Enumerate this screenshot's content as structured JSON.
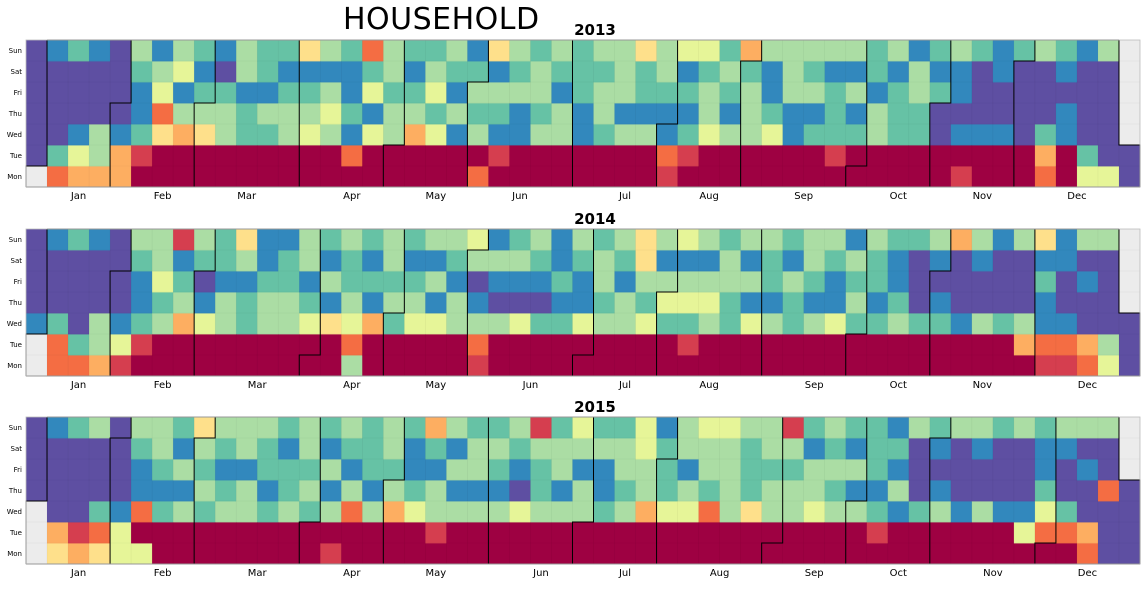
{
  "title": "HOUSEHOLD",
  "chart_data": [
    {
      "type": "heatmap",
      "title": "2013",
      "weekday_labels": [
        "Sun",
        "Sat",
        "Fri",
        "Thu",
        "Wed",
        "Tue",
        "Mon"
      ],
      "month_labels": [
        "Jan",
        "Feb",
        "Mar",
        "Apr",
        "May",
        "Jun",
        "Jul",
        "Aug",
        "Sep",
        "Oct",
        "Nov",
        "Dec"
      ],
      "grid": true,
      "colormap": [
        "#5e4fa2",
        "#3288bd",
        "#66c2a5",
        "#abdda4",
        "#e6f598",
        "#fee08b",
        "#fdae61",
        "#f46d43",
        "#d53e4f",
        "#9e0142"
      ],
      "start_date": "2013-01-01",
      "value_range": [
        0,
        9
      ],
      "values": [
        [
          0,
          0,
          0,
          0,
          0,
          0,
          0
        ],
        [
          1,
          0,
          0,
          0,
          0,
          2,
          7
        ],
        [
          2,
          0,
          0,
          0,
          1,
          4,
          6
        ],
        [
          1,
          0,
          0,
          0,
          3,
          3,
          6
        ],
        [
          0,
          0,
          0,
          0,
          1,
          6,
          6
        ],
        [
          3,
          2,
          1,
          1,
          2,
          8,
          9
        ],
        [
          1,
          3,
          4,
          7,
          5,
          9,
          9
        ],
        [
          3,
          4,
          1,
          3,
          6,
          9,
          9
        ],
        [
          2,
          1,
          2,
          3,
          5,
          9,
          9
        ],
        [
          1,
          0,
          2,
          3,
          3,
          9,
          9
        ],
        [
          3,
          3,
          1,
          2,
          2,
          9,
          9
        ],
        [
          2,
          2,
          1,
          3,
          2,
          9,
          9
        ],
        [
          2,
          1,
          2,
          3,
          3,
          9,
          9
        ],
        [
          5,
          1,
          2,
          3,
          4,
          9,
          9
        ],
        [
          3,
          1,
          3,
          4,
          3,
          9,
          9
        ],
        [
          2,
          1,
          1,
          2,
          1,
          7,
          9
        ],
        [
          7,
          2,
          4,
          1,
          4,
          9,
          9
        ],
        [
          3,
          3,
          2,
          3,
          3,
          9,
          9
        ],
        [
          2,
          1,
          2,
          3,
          6,
          9,
          9
        ],
        [
          2,
          3,
          4,
          2,
          4,
          9,
          9
        ],
        [
          3,
          2,
          1,
          3,
          1,
          9,
          9
        ],
        [
          1,
          2,
          3,
          2,
          3,
          9,
          7
        ],
        [
          5,
          1,
          3,
          2,
          1,
          8,
          9
        ],
        [
          3,
          2,
          3,
          1,
          1,
          9,
          9
        ],
        [
          2,
          3,
          3,
          2,
          3,
          9,
          9
        ],
        [
          3,
          2,
          1,
          3,
          3,
          9,
          9
        ],
        [
          2,
          2,
          2,
          1,
          1,
          9,
          9
        ],
        [
          3,
          2,
          3,
          3,
          2,
          9,
          9
        ],
        [
          3,
          3,
          3,
          1,
          3,
          9,
          9
        ],
        [
          5,
          2,
          2,
          1,
          3,
          9,
          9
        ],
        [
          3,
          3,
          2,
          1,
          1,
          7,
          8
        ],
        [
          4,
          1,
          2,
          1,
          2,
          8,
          9
        ],
        [
          4,
          2,
          3,
          3,
          4,
          9,
          9
        ],
        [
          2,
          3,
          2,
          1,
          3,
          9,
          9
        ],
        [
          6,
          2,
          3,
          3,
          3,
          9,
          9
        ],
        [
          3,
          1,
          1,
          2,
          4,
          9,
          9
        ],
        [
          3,
          3,
          3,
          1,
          1,
          9,
          9
        ],
        [
          3,
          2,
          3,
          1,
          2,
          9,
          9
        ],
        [
          3,
          1,
          2,
          2,
          2,
          8,
          9
        ],
        [
          3,
          1,
          3,
          1,
          2,
          9,
          9
        ],
        [
          2,
          2,
          1,
          3,
          3,
          9,
          9
        ],
        [
          3,
          1,
          2,
          2,
          2,
          9,
          9
        ],
        [
          1,
          3,
          3,
          2,
          2,
          9,
          9
        ],
        [
          2,
          1,
          2,
          0,
          0,
          9,
          9
        ],
        [
          3,
          1,
          1,
          0,
          1,
          9,
          8
        ],
        [
          2,
          0,
          0,
          0,
          1,
          9,
          9
        ],
        [
          1,
          1,
          0,
          0,
          1,
          9,
          9
        ],
        [
          2,
          0,
          0,
          0,
          0,
          9,
          9
        ],
        [
          3,
          0,
          0,
          0,
          2,
          6,
          7
        ],
        [
          2,
          1,
          0,
          1,
          1,
          9,
          9
        ],
        [
          1,
          0,
          0,
          0,
          0,
          2,
          4
        ],
        [
          3,
          0,
          0,
          0,
          0,
          0,
          4
        ]
      ]
    },
    {
      "type": "heatmap",
      "title": "2014",
      "weekday_labels": [
        "Sun",
        "Sat",
        "Fri",
        "Thu",
        "Wed",
        "Tue",
        "Mon"
      ],
      "month_labels": [
        "Jan",
        "Feb",
        "Mar",
        "Apr",
        "May",
        "Jun",
        "Jul",
        "Aug",
        "Sep",
        "Oct",
        "Nov",
        "Dec"
      ],
      "grid": true,
      "colormap": [
        "#5e4fa2",
        "#3288bd",
        "#66c2a5",
        "#abdda4",
        "#e6f598",
        "#fee08b",
        "#fdae61",
        "#f46d43",
        "#d53e4f",
        "#9e0142"
      ],
      "start_date": "2014-01-01",
      "value_range": [
        0,
        9
      ],
      "values": [
        [
          0,
          0,
          0,
          0,
          1,
          4,
          6
        ],
        [
          1,
          0,
          0,
          0,
          2,
          7,
          7
        ],
        [
          2,
          0,
          0,
          0,
          0,
          2,
          7
        ],
        [
          1,
          0,
          0,
          0,
          3,
          3,
          6
        ],
        [
          0,
          0,
          0,
          0,
          1,
          4,
          8
        ],
        [
          3,
          2,
          1,
          1,
          2,
          8,
          9
        ],
        [
          3,
          3,
          4,
          2,
          3,
          9,
          9
        ],
        [
          8,
          1,
          2,
          3,
          6,
          9,
          9
        ],
        [
          3,
          2,
          0,
          1,
          4,
          9,
          9
        ],
        [
          2,
          2,
          1,
          3,
          3,
          9,
          9
        ],
        [
          5,
          3,
          1,
          2,
          2,
          9,
          9
        ],
        [
          1,
          1,
          2,
          3,
          3,
          9,
          9
        ],
        [
          1,
          2,
          2,
          3,
          3,
          9,
          9
        ],
        [
          3,
          3,
          1,
          2,
          4,
          9,
          9
        ],
        [
          2,
          1,
          3,
          1,
          5,
          9,
          9
        ],
        [
          3,
          2,
          2,
          3,
          4,
          7,
          3
        ],
        [
          2,
          1,
          2,
          1,
          6,
          9,
          9
        ],
        [
          3,
          3,
          2,
          3,
          2,
          9,
          9
        ],
        [
          2,
          1,
          2,
          3,
          4,
          9,
          9
        ],
        [
          3,
          1,
          3,
          1,
          4,
          9,
          9
        ],
        [
          3,
          2,
          1,
          3,
          3,
          9,
          9
        ],
        [
          4,
          3,
          0,
          1,
          3,
          7,
          8
        ],
        [
          1,
          3,
          1,
          0,
          3,
          9,
          9
        ],
        [
          2,
          3,
          1,
          0,
          4,
          9,
          9
        ],
        [
          3,
          2,
          1,
          0,
          2,
          9,
          9
        ],
        [
          1,
          1,
          2,
          1,
          2,
          9,
          9
        ],
        [
          3,
          2,
          1,
          1,
          4,
          9,
          9
        ],
        [
          2,
          3,
          3,
          2,
          3,
          9,
          9
        ],
        [
          3,
          2,
          1,
          3,
          3,
          9,
          9
        ],
        [
          5,
          5,
          3,
          2,
          4,
          9,
          9
        ],
        [
          3,
          1,
          3,
          4,
          2,
          9,
          9
        ],
        [
          4,
          1,
          3,
          4,
          2,
          8,
          9
        ],
        [
          3,
          1,
          3,
          4,
          3,
          9,
          9
        ],
        [
          2,
          3,
          3,
          2,
          2,
          9,
          9
        ],
        [
          3,
          1,
          3,
          1,
          4,
          9,
          9
        ],
        [
          3,
          2,
          2,
          1,
          3,
          9,
          9
        ],
        [
          2,
          1,
          3,
          2,
          2,
          9,
          9
        ],
        [
          3,
          3,
          2,
          1,
          3,
          9,
          9
        ],
        [
          3,
          2,
          1,
          1,
          4,
          9,
          9
        ],
        [
          1,
          3,
          2,
          3,
          2,
          9,
          9
        ],
        [
          3,
          2,
          2,
          1,
          2,
          9,
          9
        ],
        [
          2,
          1,
          1,
          2,
          3,
          9,
          9
        ],
        [
          2,
          0,
          0,
          0,
          2,
          9,
          9
        ],
        [
          3,
          1,
          0,
          1,
          2,
          9,
          9
        ],
        [
          6,
          0,
          0,
          0,
          1,
          9,
          9
        ],
        [
          3,
          1,
          0,
          0,
          3,
          9,
          9
        ],
        [
          1,
          0,
          0,
          0,
          2,
          9,
          9
        ],
        [
          3,
          0,
          0,
          0,
          3,
          6,
          9
        ],
        [
          5,
          1,
          2,
          1,
          1,
          7,
          8
        ],
        [
          1,
          1,
          0,
          0,
          1,
          7,
          8
        ],
        [
          3,
          0,
          1,
          0,
          0,
          6,
          7
        ],
        [
          3,
          0,
          0,
          0,
          0,
          3,
          4
        ]
      ]
    },
    {
      "type": "heatmap",
      "title": "2015",
      "weekday_labels": [
        "Sun",
        "Sat",
        "Fri",
        "Thu",
        "Wed",
        "Tue",
        "Mon"
      ],
      "month_labels": [
        "Jan",
        "Feb",
        "Mar",
        "Apr",
        "May",
        "Jun",
        "Jul",
        "Aug",
        "Sep",
        "Oct",
        "Nov",
        "Dec"
      ],
      "grid": true,
      "colormap": [
        "#5e4fa2",
        "#3288bd",
        "#66c2a5",
        "#abdda4",
        "#e6f598",
        "#fee08b",
        "#fdae61",
        "#f46d43",
        "#d53e4f",
        "#9e0142"
      ],
      "start_date": "2015-01-01",
      "value_range": [
        0,
        9
      ],
      "values": [
        [
          0,
          0,
          0,
          0,
          3,
          4,
          1
        ],
        [
          1,
          0,
          0,
          0,
          0,
          6,
          5
        ],
        [
          2,
          0,
          0,
          0,
          0,
          8,
          6
        ],
        [
          3,
          0,
          0,
          0,
          2,
          7,
          5
        ],
        [
          0,
          0,
          0,
          0,
          1,
          4,
          4
        ],
        [
          3,
          2,
          1,
          1,
          7,
          9,
          4
        ],
        [
          3,
          3,
          2,
          1,
          2,
          9,
          9
        ],
        [
          2,
          1,
          3,
          1,
          3,
          9,
          9
        ],
        [
          5,
          3,
          2,
          3,
          2,
          9,
          9
        ],
        [
          3,
          2,
          1,
          2,
          3,
          9,
          9
        ],
        [
          3,
          3,
          1,
          3,
          3,
          9,
          9
        ],
        [
          3,
          2,
          2,
          1,
          2,
          9,
          9
        ],
        [
          2,
          1,
          2,
          2,
          3,
          9,
          9
        ],
        [
          3,
          3,
          2,
          3,
          2,
          9,
          9
        ],
        [
          2,
          1,
          3,
          1,
          3,
          9,
          8
        ],
        [
          3,
          2,
          1,
          3,
          7,
          9,
          9
        ],
        [
          2,
          2,
          2,
          1,
          3,
          9,
          9
        ],
        [
          3,
          3,
          2,
          3,
          6,
          9,
          9
        ],
        [
          2,
          1,
          1,
          2,
          4,
          9,
          9
        ],
        [
          6,
          2,
          1,
          3,
          3,
          8,
          9
        ],
        [
          3,
          1,
          3,
          1,
          3,
          9,
          9
        ],
        [
          2,
          3,
          3,
          1,
          3,
          9,
          9
        ],
        [
          2,
          3,
          2,
          1,
          3,
          9,
          9
        ],
        [
          3,
          2,
          1,
          0,
          4,
          9,
          9
        ],
        [
          8,
          3,
          2,
          2,
          3,
          9,
          9
        ],
        [
          2,
          3,
          3,
          1,
          3,
          9,
          9
        ],
        [
          4,
          3,
          1,
          3,
          3,
          9,
          9
        ],
        [
          2,
          3,
          1,
          1,
          2,
          9,
          9
        ],
        [
          2,
          3,
          3,
          2,
          3,
          9,
          9
        ],
        [
          4,
          4,
          3,
          3,
          6,
          9,
          9
        ],
        [
          1,
          2,
          2,
          2,
          4,
          9,
          9
        ],
        [
          3,
          3,
          1,
          3,
          4,
          9,
          9
        ],
        [
          4,
          3,
          3,
          2,
          7,
          9,
          9
        ],
        [
          4,
          3,
          3,
          3,
          3,
          9,
          9
        ],
        [
          3,
          2,
          2,
          2,
          5,
          9,
          9
        ],
        [
          3,
          3,
          2,
          3,
          3,
          9,
          9
        ],
        [
          8,
          3,
          2,
          3,
          3,
          9,
          9
        ],
        [
          2,
          1,
          3,
          3,
          4,
          9,
          9
        ],
        [
          3,
          2,
          3,
          2,
          3,
          9,
          9
        ],
        [
          2,
          1,
          3,
          1,
          3,
          9,
          9
        ],
        [
          2,
          2,
          2,
          1,
          2,
          8,
          9
        ],
        [
          1,
          2,
          1,
          3,
          1,
          9,
          9
        ],
        [
          3,
          0,
          0,
          0,
          2,
          9,
          9
        ],
        [
          2,
          1,
          0,
          1,
          3,
          9,
          9
        ],
        [
          3,
          0,
          0,
          0,
          1,
          9,
          9
        ],
        [
          3,
          1,
          0,
          0,
          3,
          9,
          9
        ],
        [
          2,
          0,
          0,
          0,
          1,
          9,
          9
        ],
        [
          3,
          0,
          0,
          0,
          1,
          4,
          9
        ],
        [
          2,
          1,
          1,
          2,
          4,
          7,
          9
        ],
        [
          3,
          1,
          0,
          0,
          2,
          7,
          9
        ],
        [
          3,
          0,
          1,
          0,
          0,
          6,
          7
        ],
        [
          3,
          0,
          0,
          7,
          0,
          0,
          0
        ]
      ]
    }
  ]
}
